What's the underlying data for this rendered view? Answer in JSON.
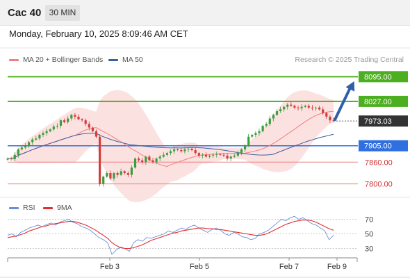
{
  "header": {
    "title": "Cac 40",
    "timeframe": "30 MIN"
  },
  "datetime": "Monday, February 10, 2025 8:09:46 AM CET",
  "legend": {
    "ma20_label": "MA 20 + Bollinger Bands",
    "ma50_label": "MA 50",
    "ma20_color": "#f08080",
    "ma50_color": "#3a5fa0"
  },
  "copyright": "Research © 2025 Trading Central",
  "rsi_legend": {
    "rsi_label": "RSI",
    "ma_label": "9MA",
    "rsi_color": "#6a8fd8",
    "ma_color": "#e03030"
  },
  "chart_data": [
    {
      "type": "candlestick",
      "title": "Cac 40",
      "ylim": [
        7765,
        8130
      ],
      "levels": [
        {
          "label": "8095.00",
          "value": 8095,
          "kind": "target",
          "color": "#4caf20"
        },
        {
          "label": "8027.00",
          "value": 8027,
          "kind": "resistance",
          "color": "#4caf20"
        },
        {
          "label": "7973.03",
          "value": 7973.03,
          "kind": "last",
          "color": "#333333"
        },
        {
          "label": "7905.00",
          "value": 7905,
          "kind": "pivot",
          "color": "#2f6fe0"
        },
        {
          "label": "7860.00",
          "value": 7860,
          "kind": "support",
          "color": "#e07070"
        },
        {
          "label": "7800.00",
          "value": 7800,
          "kind": "support",
          "color": "#e07070"
        }
      ],
      "close_series": [
        7870,
        7868,
        7880,
        7895,
        7900,
        7905,
        7915,
        7922,
        7925,
        7935,
        7940,
        7945,
        7950,
        7958,
        7960,
        7975,
        7970,
        7980,
        7990,
        7985,
        7978,
        7975,
        7965,
        7955,
        7945,
        7930,
        7800,
        7820,
        7830,
        7815,
        7830,
        7825,
        7835,
        7830,
        7825,
        7845,
        7870,
        7865,
        7860,
        7875,
        7865,
        7860,
        7870,
        7875,
        7880,
        7885,
        7890,
        7895,
        7893,
        7890,
        7895,
        7897,
        7893,
        7885,
        7878,
        7880,
        7875,
        7878,
        7880,
        7882,
        7880,
        7878,
        7870,
        7875,
        7878,
        7885,
        7895,
        7905,
        7930,
        7935,
        7940,
        7945,
        7960,
        7965,
        7980,
        7990,
        8000,
        8005,
        8012,
        8018,
        8015,
        8010,
        8008,
        8012,
        8015,
        8010,
        8008,
        8010,
        8005,
        7995,
        7985,
        7975,
        7973.03
      ],
      "forecast_path": [
        7973.03,
        8095
      ],
      "x_ticks": [
        "Feb 3",
        "Feb 5",
        "Feb 7",
        "Feb 9"
      ]
    },
    {
      "type": "line",
      "title": "RSI",
      "ylim": [
        20,
        80
      ],
      "y_ticks": [
        70,
        50,
        30
      ],
      "series": [
        {
          "name": "RSI",
          "values": [
            48,
            50,
            46,
            52,
            55,
            58,
            60,
            62,
            60,
            63,
            65,
            62,
            66,
            68,
            70,
            66,
            64,
            60,
            58,
            55,
            50,
            45,
            42,
            38,
            22,
            28,
            32,
            30,
            26,
            38,
            42,
            40,
            45,
            44,
            46,
            48,
            50,
            54,
            52,
            55,
            58,
            56,
            60,
            62,
            58,
            55,
            52,
            56,
            58,
            55,
            50,
            48,
            52,
            50,
            46,
            45,
            42,
            44,
            50,
            52,
            55,
            60,
            65,
            70,
            68,
            72,
            74,
            70,
            72,
            68,
            64,
            62,
            58,
            54,
            42,
            48
          ]
        },
        {
          "name": "9MA",
          "values": [
            45,
            46,
            47,
            49,
            51,
            54,
            56,
            58,
            60,
            61,
            63,
            64,
            65,
            66,
            67,
            67,
            66,
            64,
            62,
            59,
            56,
            52,
            48,
            44,
            38,
            34,
            31,
            30,
            30,
            31,
            33,
            35,
            38,
            41,
            43,
            45,
            47,
            49,
            51,
            52,
            54,
            55,
            56,
            57,
            58,
            58,
            57,
            57,
            56,
            56,
            55,
            54,
            53,
            52,
            51,
            50,
            49,
            48,
            48,
            49,
            51,
            54,
            57,
            60,
            63,
            65,
            67,
            68,
            69,
            69,
            68,
            66,
            63,
            60,
            57,
            55
          ]
        }
      ]
    }
  ]
}
